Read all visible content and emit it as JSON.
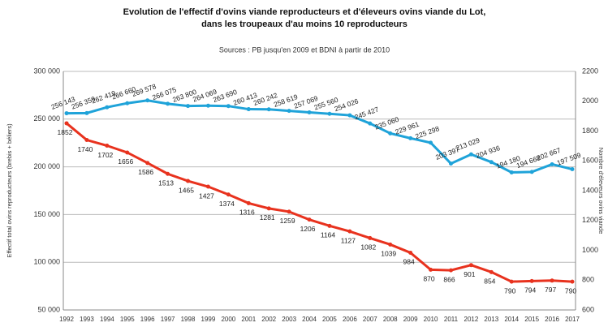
{
  "chart_data": {
    "type": "line",
    "title": "Evolution de l'effectif d'ovins viande reproducteurs et d'éleveurs ovins viande du Lot,",
    "subtitle": "dans les troupeaux d'au moins 10 reproducteurs",
    "source": "Sources : PB jusqu'en 2009 et BDNI à partir de 2010",
    "ylabel": "Effectif total ovins reproducteurs (brebis + béliers)",
    "y2label": "Nombre d'éleveurs ovins viande",
    "categories": [
      "1992",
      "1993",
      "1994",
      "1995",
      "1996",
      "1997",
      "1998",
      "1999",
      "2000",
      "2001",
      "2002",
      "2003",
      "2004",
      "2005",
      "2006",
      "2007",
      "2008",
      "2009",
      "2010",
      "2011",
      "2012",
      "2013",
      "2014",
      "2015",
      "2016",
      "2017"
    ],
    "ylim": [
      50000,
      300000
    ],
    "yticks": [
      {
        "value": 50000,
        "label": "50 000"
      },
      {
        "value": 100000,
        "label": "100 000"
      },
      {
        "value": 150000,
        "label": "150 000"
      },
      {
        "value": 200000,
        "label": "200 000"
      },
      {
        "value": 250000,
        "label": "250 000"
      },
      {
        "value": 300000,
        "label": "300 000"
      }
    ],
    "y2lim": [
      600,
      2200
    ],
    "y2ticks": [
      600,
      800,
      1000,
      1200,
      1400,
      1600,
      1800,
      2000,
      2200
    ],
    "grid": true,
    "series": [
      {
        "name": "Effectif ovins",
        "color": "#1fa3d9",
        "values": [
          256143,
          256359,
          262419,
          266660,
          269578,
          266075,
          263800,
          264069,
          263690,
          260413,
          260242,
          258619,
          257069,
          255560,
          254026,
          245427,
          235060,
          229961,
          225298,
          203397,
          213029,
          204936,
          194180,
          194668,
          202667,
          197509
        ],
        "value_labels": [
          "256 143",
          "256 359",
          "262 419",
          "266 660",
          "269 578",
          "266 075",
          "263 800",
          "264 069",
          "263 690",
          "260 413",
          "260 242",
          "258 619",
          "257 069",
          "255 560",
          "254 026",
          "245 427",
          "235 060",
          "229 961",
          "225 298",
          "203 397",
          "213 029",
          "204 936",
          "194 180",
          "194 668",
          "202 667",
          "197 509"
        ]
      },
      {
        "name": "Nombre d'éleveurs",
        "color": "#e8321e",
        "axis": "y2",
        "values": [
          1852,
          1740,
          1702,
          1656,
          1586,
          1513,
          1465,
          1427,
          1374,
          1316,
          1281,
          1259,
          1206,
          1164,
          1127,
          1082,
          1039,
          984,
          870,
          866,
          901,
          854,
          790,
          794,
          797,
          790
        ]
      }
    ]
  }
}
